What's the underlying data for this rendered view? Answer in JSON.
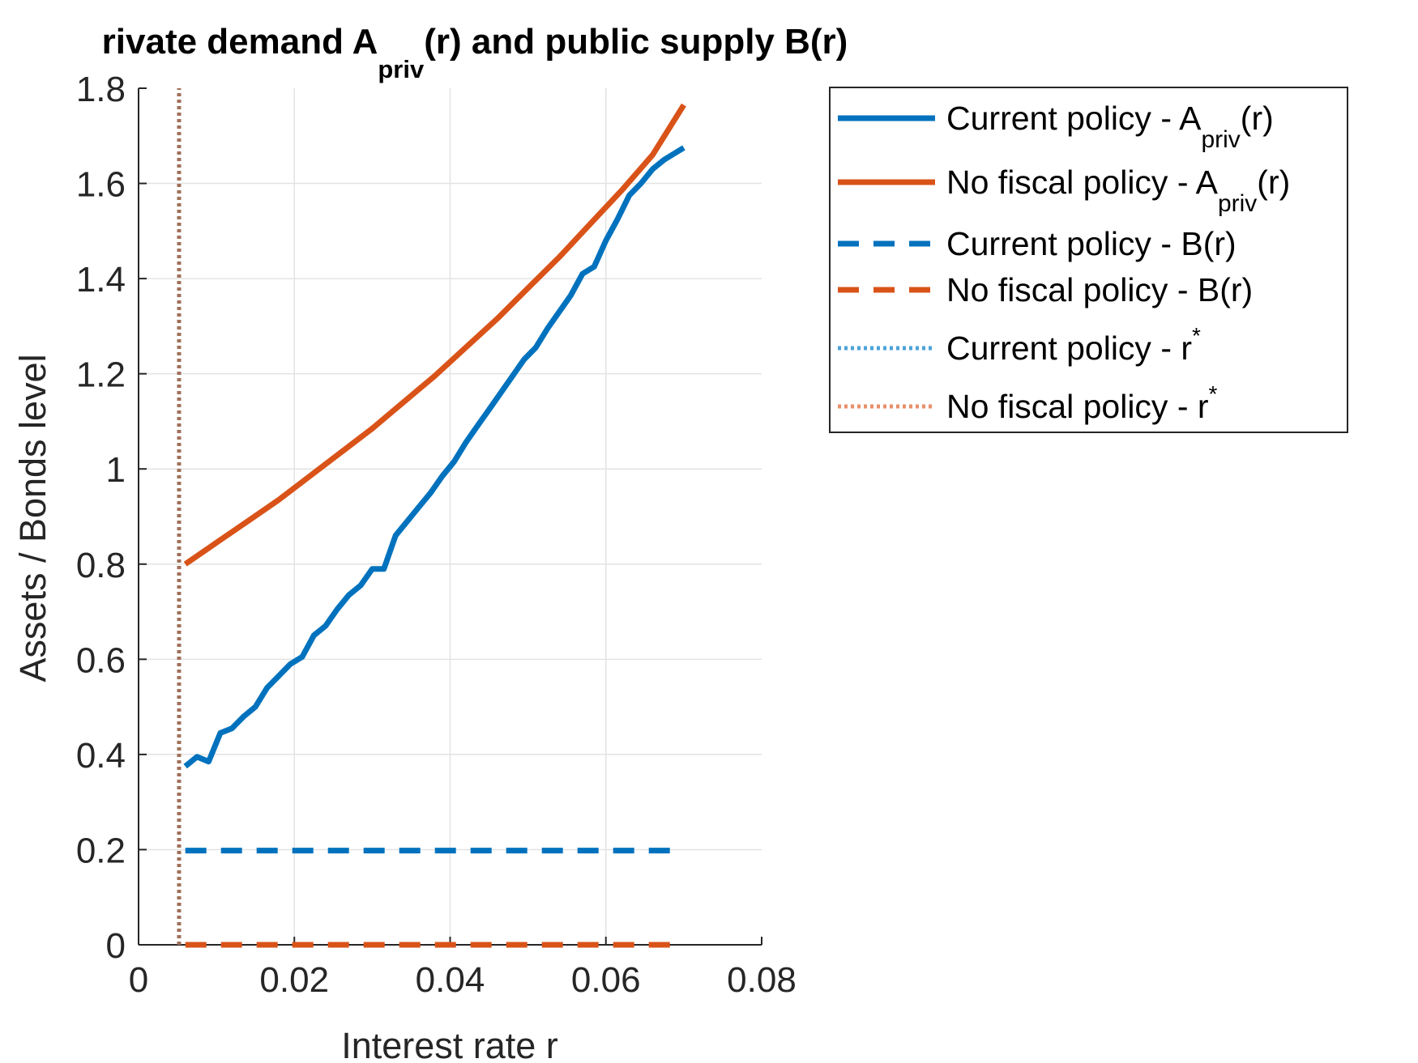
{
  "chart_data": {
    "type": "line",
    "title": {
      "prefix": "rivate demand A",
      "subscript": "priv",
      "suffix": "(r) and public supply B(r)"
    },
    "xlabel": "Interest rate r",
    "ylabel": "Assets / Bonds level",
    "xlim": [
      0,
      0.08
    ],
    "ylim": [
      0,
      1.8
    ],
    "xticks": [
      0,
      0.02,
      0.04,
      0.06,
      0.08
    ],
    "xtick_labels": [
      "0",
      "0.02",
      "0.04",
      "0.06",
      "0.08"
    ],
    "yticks": [
      0,
      0.2,
      0.4,
      0.6,
      0.8,
      1.0,
      1.2,
      1.4,
      1.6,
      1.8
    ],
    "ytick_labels": [
      "0",
      "0.2",
      "0.4",
      "0.6",
      "0.8",
      "1",
      "1.2",
      "1.4",
      "1.6",
      "1.8"
    ],
    "grid": true,
    "legend_position": "outside-top-right",
    "series": [
      {
        "key": "current_apriv",
        "name": "Current policy - A",
        "name_sub": "priv",
        "name_suffix": "(r)",
        "color": "#0072BD",
        "style": "solid",
        "x": [
          0.006,
          0.0075,
          0.009,
          0.0105,
          0.012,
          0.0135,
          0.015,
          0.0165,
          0.018,
          0.0195,
          0.021,
          0.0225,
          0.024,
          0.0255,
          0.027,
          0.0285,
          0.03,
          0.0315,
          0.033,
          0.0345,
          0.036,
          0.0375,
          0.039,
          0.0405,
          0.042,
          0.0435,
          0.045,
          0.0465,
          0.048,
          0.0495,
          0.051,
          0.0525,
          0.054,
          0.0555,
          0.057,
          0.0585,
          0.06,
          0.0615,
          0.063,
          0.0645,
          0.066,
          0.0675,
          0.069,
          0.07
        ],
        "y": [
          0.375,
          0.395,
          0.385,
          0.445,
          0.455,
          0.48,
          0.5,
          0.54,
          0.565,
          0.59,
          0.605,
          0.65,
          0.67,
          0.705,
          0.735,
          0.755,
          0.79,
          0.79,
          0.86,
          0.89,
          0.92,
          0.95,
          0.985,
          1.015,
          1.055,
          1.09,
          1.125,
          1.16,
          1.195,
          1.23,
          1.255,
          1.295,
          1.33,
          1.365,
          1.41,
          1.425,
          1.48,
          1.525,
          1.575,
          1.6,
          1.63,
          1.65,
          1.665,
          1.675
        ]
      },
      {
        "key": "nofiscal_apriv",
        "name": "No fiscal policy - A",
        "name_sub": "priv",
        "name_suffix": "(r)",
        "color": "#D95319",
        "style": "solid",
        "x": [
          0.006,
          0.01,
          0.014,
          0.018,
          0.022,
          0.026,
          0.03,
          0.034,
          0.038,
          0.042,
          0.046,
          0.05,
          0.054,
          0.058,
          0.062,
          0.066,
          0.07
        ],
        "y": [
          0.8,
          0.845,
          0.89,
          0.935,
          0.985,
          1.035,
          1.085,
          1.14,
          1.195,
          1.255,
          1.315,
          1.38,
          1.445,
          1.515,
          1.585,
          1.66,
          1.765
        ]
      },
      {
        "key": "current_b",
        "name": "Current policy - B(r)",
        "color": "#0072BD",
        "style": "dashed",
        "x": [
          0.006,
          0.069
        ],
        "y": [
          0.198,
          0.198
        ]
      },
      {
        "key": "nofiscal_b",
        "name": "No fiscal policy - B(r)",
        "color": "#D95319",
        "style": "dashed",
        "x": [
          0.006,
          0.069
        ],
        "y": [
          0.0,
          0.0
        ]
      },
      {
        "key": "current_rstar",
        "name": "Current policy - r",
        "name_sup": "*",
        "color": "#4DA3D9",
        "style": "dotted",
        "x": [
          0.0052,
          0.0052
        ],
        "y": [
          0,
          1.8
        ]
      },
      {
        "key": "nofiscal_rstar",
        "name": "No fiscal policy - r",
        "name_sup": "*",
        "color": "#A0705A",
        "legend_color": "#E8906A",
        "style": "dotted",
        "x": [
          0.0052,
          0.0052
        ],
        "y": [
          0,
          1.8
        ]
      }
    ]
  }
}
